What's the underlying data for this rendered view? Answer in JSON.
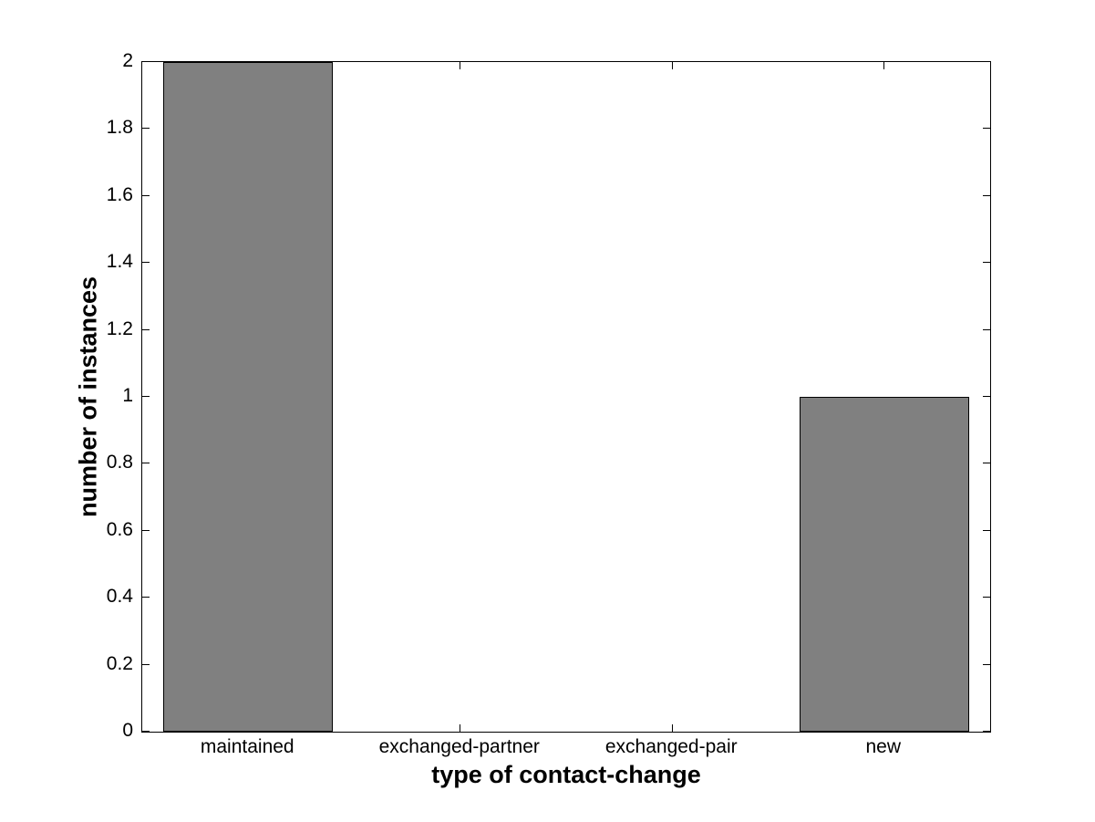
{
  "chart_data": {
    "type": "bar",
    "title": "",
    "xlabel": "type of contact-change",
    "ylabel": "number of instances",
    "categories": [
      "maintained",
      "exchanged-partner",
      "exchanged-pair",
      "new"
    ],
    "values": [
      2,
      0,
      0,
      1
    ],
    "ylim": [
      0,
      2
    ],
    "ytick_values": [
      0,
      0.2,
      0.4,
      0.6,
      0.8,
      1,
      1.2,
      1.4,
      1.6,
      1.8,
      2
    ],
    "ytick_labels": [
      "0",
      "0.2",
      "0.4",
      "0.6",
      "0.8",
      "1",
      "1.2",
      "1.4",
      "1.6",
      "1.8",
      "2"
    ],
    "bar_width_fraction": 0.8,
    "bar_color": "#808080",
    "bar_edge_color": "#000000",
    "axis_color": "#000000",
    "text_color": "#000000",
    "background_color": "#ffffff",
    "grid": false,
    "legend": null,
    "tick_direction": "in",
    "box": true
  }
}
